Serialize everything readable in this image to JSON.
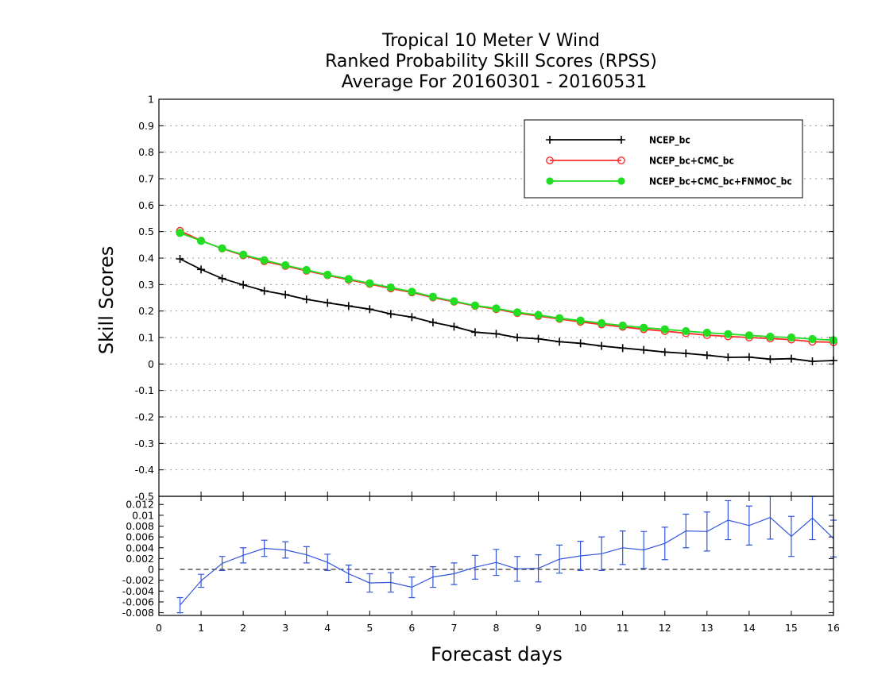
{
  "title_lines": [
    "Tropical 10 Meter V Wind",
    "Ranked Probability Skill Scores (RPSS)",
    "Average For 20160301 - 20160531"
  ],
  "chart_data": [
    {
      "type": "line",
      "title": "Tropical 10 Meter V Wind / Ranked Probability Skill Scores (RPSS) / Average For 20160301 - 20160531",
      "xlabel": "Forecast days",
      "ylabel": "Skill Scores",
      "xlim": [
        0,
        16
      ],
      "ylim": [
        -0.5,
        1
      ],
      "grid": true,
      "legend_position": "top-right",
      "x_ticks": [
        "0",
        "1",
        "2",
        "3",
        "4",
        "5",
        "6",
        "7",
        "8",
        "9",
        "10",
        "11",
        "12",
        "13",
        "14",
        "15",
        "16"
      ],
      "y_ticks": [
        "1",
        "0.9",
        "0.8",
        "0.7",
        "0.6",
        "0.5",
        "0.4",
        "0.3",
        "0.2",
        "0.1",
        "0",
        "-0.1",
        "-0.2",
        "-0.3",
        "-0.4",
        "-0.5"
      ],
      "x": [
        0.5,
        1,
        1.5,
        2,
        2.5,
        3,
        3.5,
        4,
        4.5,
        5,
        5.5,
        6,
        6.5,
        7,
        7.5,
        8,
        8.5,
        9,
        9.5,
        10,
        10.5,
        11,
        11.5,
        12,
        12.5,
        13,
        13.5,
        14,
        14.5,
        15,
        15.5,
        16
      ],
      "series": [
        {
          "name": "NCEP_bc",
          "color": "#000000",
          "marker": "plus",
          "values": [
            0.397,
            0.357,
            0.323,
            0.299,
            0.276,
            0.262,
            0.244,
            0.231,
            0.219,
            0.207,
            0.189,
            0.177,
            0.157,
            0.141,
            0.12,
            0.114,
            0.1,
            0.095,
            0.084,
            0.078,
            0.068,
            0.06,
            0.053,
            0.045,
            0.04,
            0.033,
            0.025,
            0.026,
            0.018,
            0.02,
            0.01,
            0.013
          ]
        },
        {
          "name": "NCEP_bc+CMC_bc",
          "color": "#ff2b2b",
          "marker": "open-circle",
          "values": [
            0.503,
            0.466,
            0.436,
            0.41,
            0.388,
            0.37,
            0.352,
            0.335,
            0.318,
            0.302,
            0.285,
            0.27,
            0.251,
            0.235,
            0.219,
            0.207,
            0.192,
            0.181,
            0.17,
            0.159,
            0.149,
            0.14,
            0.131,
            0.124,
            0.116,
            0.109,
            0.104,
            0.1,
            0.096,
            0.092,
            0.084,
            0.082
          ]
        },
        {
          "name": "NCEP_bc+CMC_bc+FNMOC_bc",
          "color": "#22dd22",
          "marker": "filled-circle",
          "values": [
            0.495,
            0.465,
            0.437,
            0.413,
            0.392,
            0.373,
            0.355,
            0.337,
            0.321,
            0.305,
            0.289,
            0.273,
            0.254,
            0.237,
            0.221,
            0.21,
            0.195,
            0.185,
            0.173,
            0.164,
            0.154,
            0.145,
            0.137,
            0.131,
            0.124,
            0.118,
            0.113,
            0.108,
            0.103,
            0.1,
            0.094,
            0.09
          ]
        }
      ]
    },
    {
      "type": "line",
      "xlabel": "Forecast days",
      "xlim": [
        0,
        16
      ],
      "ylim": [
        -0.0085,
        0.0135
      ],
      "y_ticks": [
        "0.012",
        "0.01",
        "0.008",
        "0.006",
        "0.004",
        "0.002",
        "0",
        "-0.002",
        "-0.004",
        "-0.006",
        "-0.008"
      ],
      "x": [
        0.5,
        1,
        1.5,
        2,
        2.5,
        3,
        3.5,
        4,
        4.5,
        5,
        5.5,
        6,
        6.5,
        7,
        7.5,
        8,
        8.5,
        9,
        9.5,
        10,
        10.5,
        11,
        11.5,
        12,
        12.5,
        13,
        13.5,
        14,
        14.5,
        15,
        15.5,
        16
      ],
      "series": [
        {
          "color": "#3355dd",
          "error_bars": true,
          "values": [
            -0.0066,
            -0.0021,
            0.0011,
            0.0026,
            0.0039,
            0.0036,
            0.0027,
            0.0013,
            -0.0008,
            -0.0025,
            -0.0024,
            -0.0033,
            -0.0014,
            -0.0008,
            0.0004,
            0.0013,
            0.0001,
            0.0002,
            0.0019,
            0.0025,
            0.0029,
            0.004,
            0.0036,
            0.0048,
            0.0071,
            0.007,
            0.0091,
            0.0081,
            0.0096,
            0.0061,
            0.0095,
            0.0057
          ],
          "error_half_width": [
            0.0014,
            0.0012,
            0.0013,
            0.0014,
            0.0015,
            0.0015,
            0.0015,
            0.0015,
            0.0016,
            0.0017,
            0.0018,
            0.0019,
            0.0019,
            0.002,
            0.0022,
            0.0024,
            0.0023,
            0.0025,
            0.0026,
            0.0027,
            0.0031,
            0.0031,
            0.0034,
            0.003,
            0.0031,
            0.0036,
            0.0036,
            0.0036,
            0.004,
            0.0037,
            0.004,
            0.0034
          ]
        }
      ],
      "reference_line": 0
    }
  ]
}
